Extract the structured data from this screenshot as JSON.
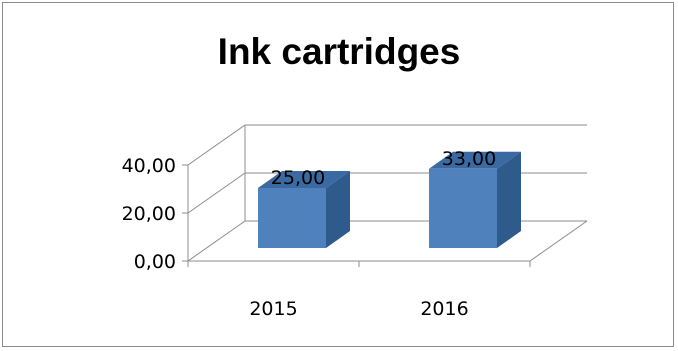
{
  "chart_data": {
    "type": "bar",
    "style": "3d-column",
    "title": "Ink cartridges",
    "categories": [
      "2015",
      "2016"
    ],
    "values": [
      25.0,
      33.0
    ],
    "data_labels": [
      "25,00",
      "33,00"
    ],
    "y_ticks": [
      0,
      20,
      40
    ],
    "y_tick_labels": [
      "0,00",
      "20,00",
      "40,00"
    ],
    "ylim": [
      0,
      40
    ],
    "grid": true,
    "legend": "none",
    "bar_color": "#4f81bd",
    "bar_side_color": "#2e5a8c",
    "bar_top_color": "#3b6aa3"
  }
}
